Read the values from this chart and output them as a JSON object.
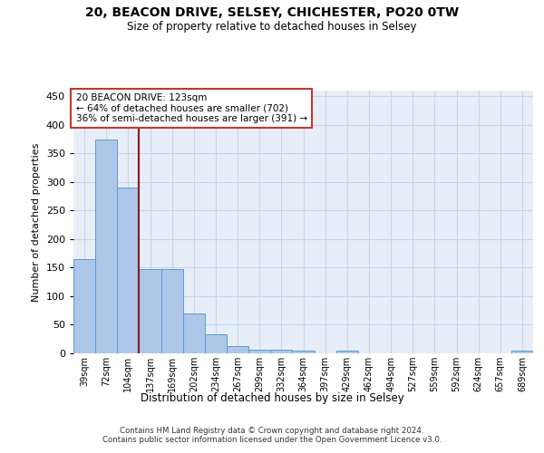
{
  "title1": "20, BEACON DRIVE, SELSEY, CHICHESTER, PO20 0TW",
  "title2": "Size of property relative to detached houses in Selsey",
  "xlabel": "Distribution of detached houses by size in Selsey",
  "ylabel": "Number of detached properties",
  "bar_categories": [
    "39sqm",
    "72sqm",
    "104sqm",
    "137sqm",
    "169sqm",
    "202sqm",
    "234sqm",
    "267sqm",
    "299sqm",
    "332sqm",
    "364sqm",
    "397sqm",
    "429sqm",
    "462sqm",
    "494sqm",
    "527sqm",
    "559sqm",
    "592sqm",
    "624sqm",
    "657sqm",
    "689sqm"
  ],
  "bar_values": [
    165,
    375,
    290,
    148,
    148,
    70,
    33,
    13,
    7,
    6,
    4,
    0,
    4,
    0,
    0,
    0,
    0,
    0,
    0,
    0,
    4
  ],
  "bar_color": "#aec6e8",
  "bar_edgecolor": "#5b9bd5",
  "grid_color": "#c8d4e8",
  "background_color": "#e8eef8",
  "vline_x": 2.5,
  "vline_color": "#8b1a1a",
  "annotation_text": "20 BEACON DRIVE: 123sqm\n← 64% of detached houses are smaller (702)\n36% of semi-detached houses are larger (391) →",
  "annotation_box_color": "white",
  "annotation_box_edgecolor": "#c0392b",
  "footer": "Contains HM Land Registry data © Crown copyright and database right 2024.\nContains public sector information licensed under the Open Government Licence v3.0.",
  "ylim": [
    0,
    460
  ],
  "yticks": [
    0,
    50,
    100,
    150,
    200,
    250,
    300,
    350,
    400,
    450
  ]
}
